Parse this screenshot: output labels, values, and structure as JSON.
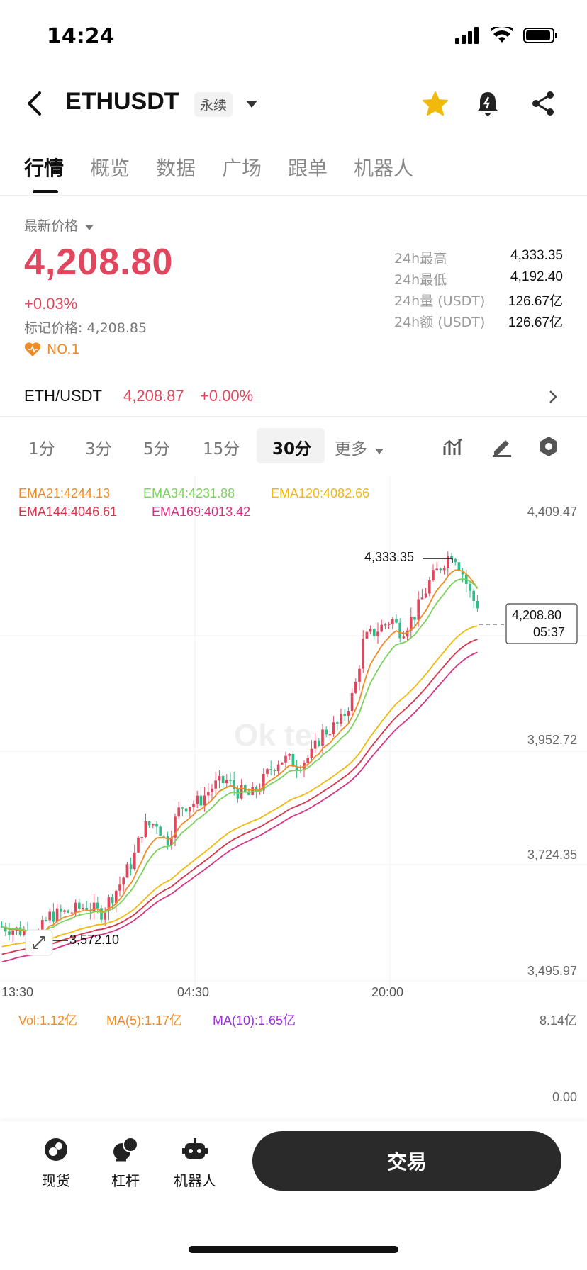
{
  "status": {
    "time": "14:24"
  },
  "header": {
    "symbol": "ETHUSDT",
    "badge": "永续",
    "icons": [
      "back-icon",
      "caret-down-icon",
      "star-icon",
      "bell-icon",
      "share-icon"
    ]
  },
  "tabs": [
    {
      "label": "行情"
    },
    {
      "label": "概览"
    },
    {
      "label": "数据"
    },
    {
      "label": "广场"
    },
    {
      "label": "跟单"
    },
    {
      "label": "机器人"
    }
  ],
  "price": {
    "label": "最新价格",
    "last": "4,208.80",
    "change": "+0.03%",
    "mark_label": "标记价格:",
    "mark_value": "4,208.85",
    "rank": "NO.1"
  },
  "stats": [
    {
      "label": "24h最高",
      "value": "4,333.35"
    },
    {
      "label": "24h最低",
      "value": "4,192.40"
    },
    {
      "label": "24h量 (USDT)",
      "value": "126.67亿"
    },
    {
      "label": "24h额 (USDT)",
      "value": "126.67亿"
    }
  ],
  "pair": {
    "name": "ETH/USDT",
    "price": "4,208.87",
    "change": "+0.00%"
  },
  "intervals": [
    "1分",
    "3分",
    "5分",
    "15分",
    "30分",
    "更多"
  ],
  "chart": {
    "ema": {
      "ema21": "EMA21:4244.13",
      "ema34": "EMA34:4231.88",
      "ema120": "EMA120:4082.66",
      "ema144": "EMA144:4046.61",
      "ema169": "EMA169:4013.42"
    },
    "y_ticks": [
      "4,409.47",
      "3,952.72",
      "3,724.35",
      "3,495.97"
    ],
    "x_ticks": [
      "13:30",
      "04:30",
      "20:00"
    ],
    "high_marker": "4,333.35",
    "low_marker": "3,572.10",
    "current_price": "4,208.80",
    "countdown": "05:37",
    "colors": {
      "up": "#e0475e",
      "down": "#2ebd85",
      "ema21": "#f08a24",
      "ema34": "#7ad25c",
      "ema120": "#f0b90b",
      "ema144": "#d9334a",
      "ema169": "#d63384"
    }
  },
  "volume": {
    "vol": "Vol:1.12亿",
    "ma5": "MA(5):1.17亿",
    "ma10": "MA(10):1.65亿",
    "max": "8.14亿",
    "min": "0.00"
  },
  "chart_data": {
    "type": "line",
    "title": "",
    "xlabel": "",
    "ylabel": "",
    "x": [
      "13:30",
      "04:30",
      "20:00"
    ],
    "ylim": [
      3495.97,
      4409.47
    ],
    "series": [
      {
        "name": "EMA21:4244.13",
        "values": [
          3560,
          3860,
          4244.13
        ]
      },
      {
        "name": "EMA34:4231.88",
        "values": [
          3555,
          3830,
          4231.88
        ]
      },
      {
        "name": "EMA120:4082.66",
        "values": [
          3565,
          3720,
          4082.66
        ]
      },
      {
        "name": "EMA144:4046.61",
        "values": [
          3560,
          3700,
          4046.61
        ]
      },
      {
        "name": "EMA169:4013.42",
        "values": [
          3555,
          3685,
          4013.42
        ]
      }
    ]
  },
  "bottom": {
    "items": [
      {
        "label": "现货"
      },
      {
        "label": "杠杆"
      },
      {
        "label": "机器人"
      }
    ],
    "trade": "交易"
  }
}
